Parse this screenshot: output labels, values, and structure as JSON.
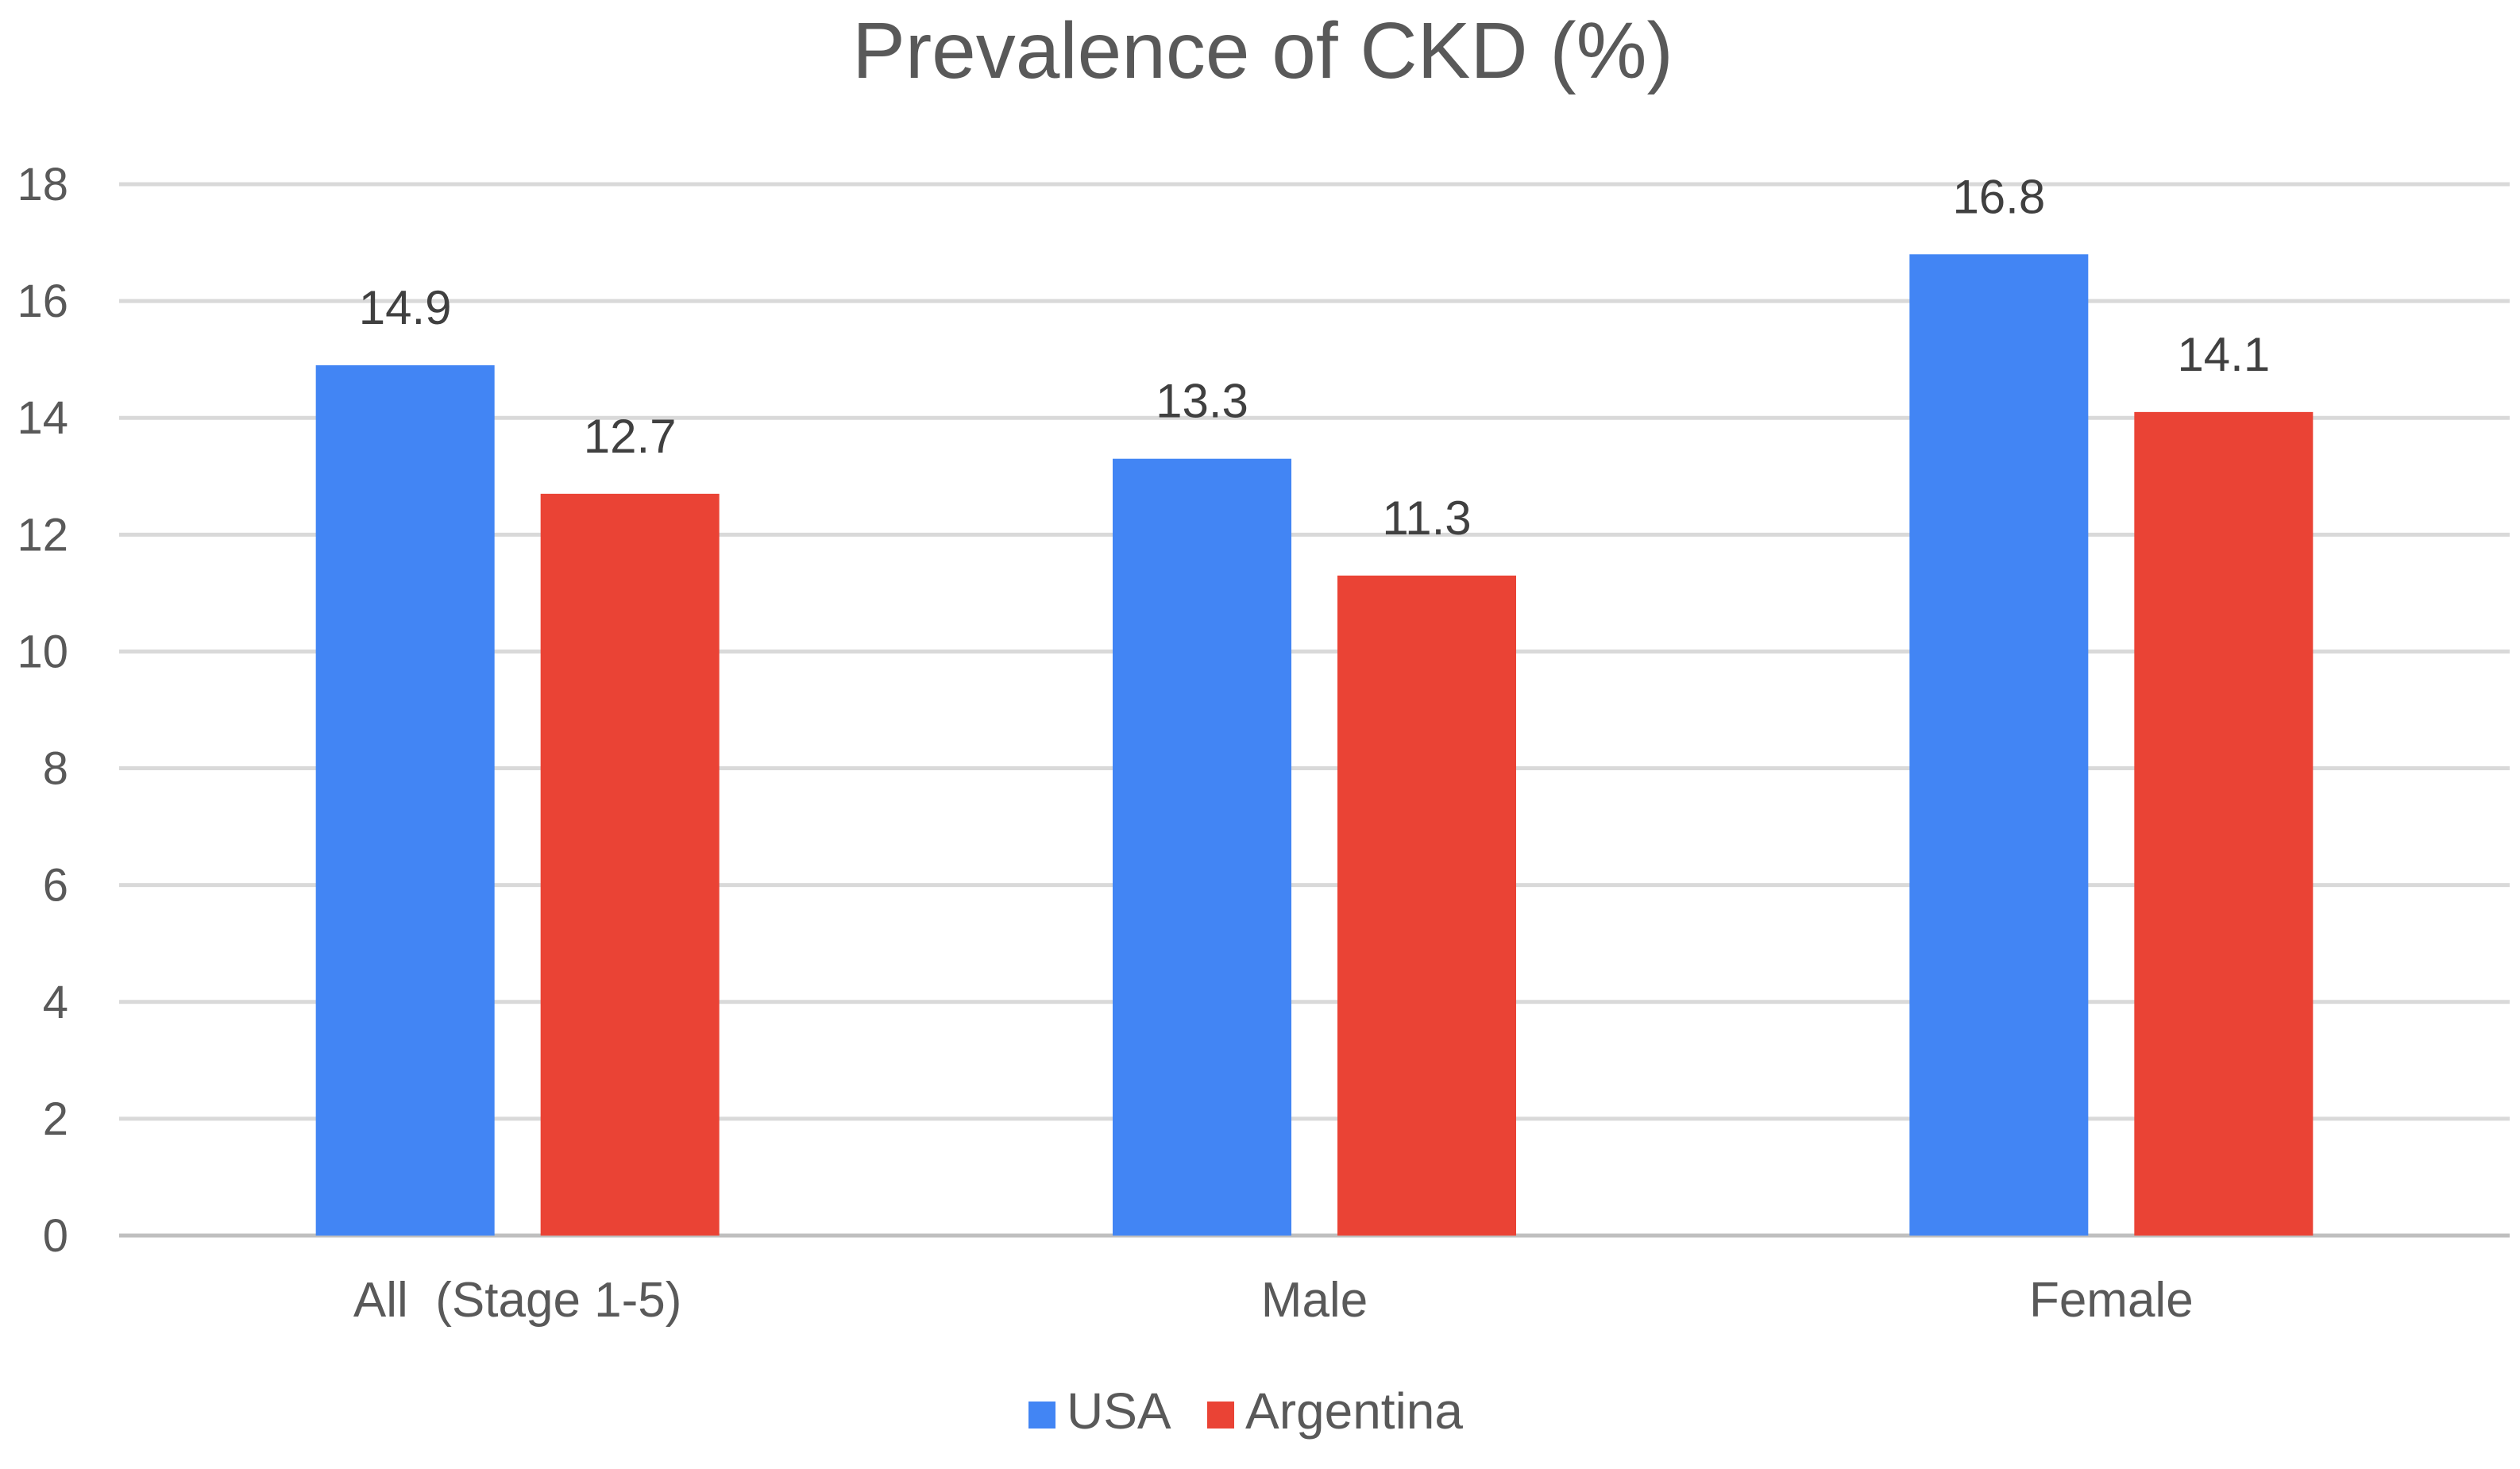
{
  "chart_data": {
    "type": "bar",
    "title": "Prevalence of CKD (%)",
    "xlabel": "",
    "ylabel": "",
    "categories": [
      "All  (Stage 1-5)",
      "Male",
      "Female"
    ],
    "series": [
      {
        "name": "USA",
        "color": "#4285f4",
        "values": [
          14.9,
          13.3,
          16.8
        ]
      },
      {
        "name": "Argentina",
        "color": "#ea4335",
        "values": [
          12.7,
          11.3,
          14.1
        ]
      }
    ],
    "data_labels": [
      [
        "14.9",
        "13.3",
        "16.8"
      ],
      [
        "12.7",
        "11.3",
        "14.1"
      ]
    ],
    "yticks": [
      0,
      2,
      4,
      6,
      8,
      10,
      12,
      14,
      16,
      18
    ],
    "ylim": [
      0,
      18
    ],
    "grid": true,
    "legend_position": "bottom-center"
  }
}
